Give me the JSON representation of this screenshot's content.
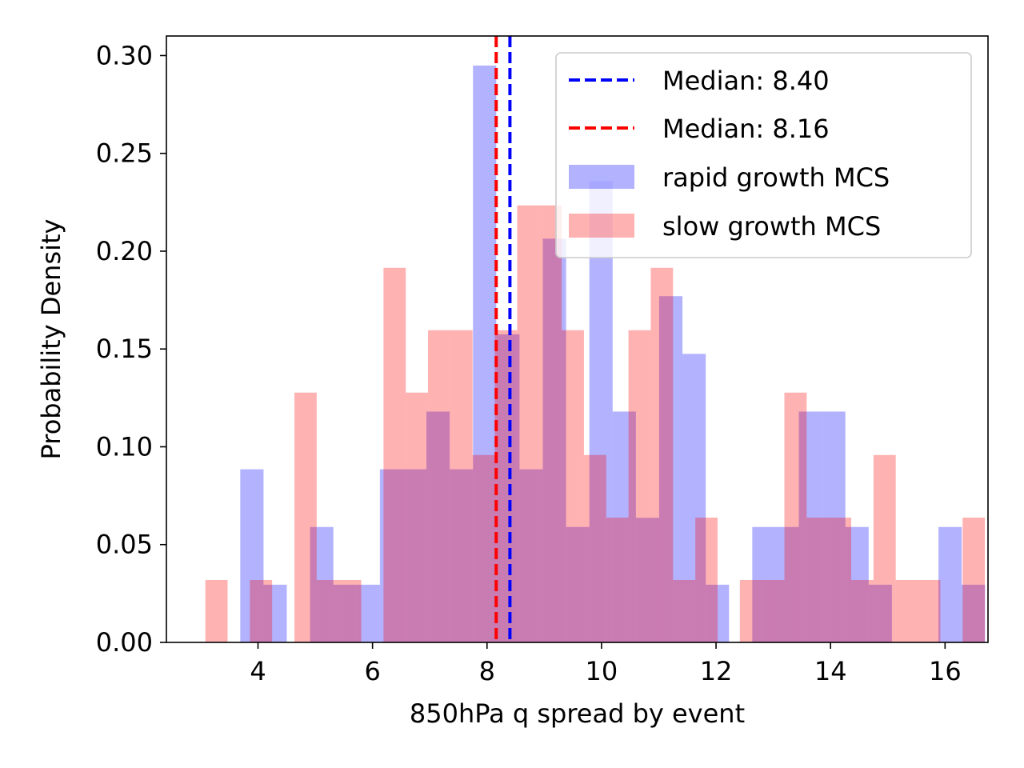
{
  "chart_data": {
    "type": "bar",
    "xlabel": "850hPa q spread by event",
    "ylabel": "Probability Density",
    "xlim": [
      2.4,
      16.75
    ],
    "ylim": [
      0,
      0.31
    ],
    "x_ticks": [
      4,
      6,
      8,
      10,
      12,
      14,
      16
    ],
    "x_tick_labels": [
      "4",
      "6",
      "8",
      "10",
      "12",
      "14",
      "16"
    ],
    "y_ticks": [
      0.0,
      0.05,
      0.1,
      0.15,
      0.2,
      0.25,
      0.3
    ],
    "y_tick_labels": [
      "0.00",
      "0.05",
      "0.10",
      "0.15",
      "0.20",
      "0.25",
      "0.30"
    ],
    "grid": false,
    "legend_position": "top-right",
    "series": [
      {
        "name": "rapid growth MCS",
        "color": "#0000ff",
        "alpha": 0.3,
        "bin_start": 3.69,
        "bin_width": 0.4065,
        "values": [
          0.0885,
          0.0295,
          0.0,
          0.059,
          0.0295,
          0.0295,
          0.0885,
          0.0885,
          0.118,
          0.0885,
          0.2949,
          0.1575,
          0.0885,
          0.2064,
          0.059,
          0.2359,
          0.118,
          0.0637,
          0.177,
          0.1475,
          0.0295,
          0.0,
          0.059,
          0.059,
          0.118,
          0.118,
          0.059,
          0.0295,
          0.0,
          0.0,
          0.059,
          0.0295,
          0.0,
          0.0,
          0.0,
          0.0,
          0.0295
        ]
      },
      {
        "name": "slow growth MCS",
        "color": "#ff0000",
        "alpha": 0.3,
        "bin_start": 3.08,
        "bin_width": 0.389,
        "values": [
          0.0319,
          0.0,
          0.0319,
          0.0,
          0.1277,
          0.0319,
          0.0319,
          0.0,
          0.1915,
          0.1277,
          0.1596,
          0.1596,
          0.0958,
          0.1596,
          0.2234,
          0.2234,
          0.1596,
          0.0958,
          0.0638,
          0.1596,
          0.1915,
          0.0319,
          0.0638,
          0.0,
          0.0319,
          0.0319,
          0.1277,
          0.0638,
          0.0638,
          0.0319,
          0.0958,
          0.0319,
          0.0319,
          0.0,
          0.0638
        ]
      }
    ],
    "median_lines": [
      {
        "label": "Median: 8.40",
        "value": 8.4,
        "color": "#0000ff"
      },
      {
        "label": "Median: 8.16",
        "value": 8.16,
        "color": "#ff0000"
      }
    ]
  }
}
